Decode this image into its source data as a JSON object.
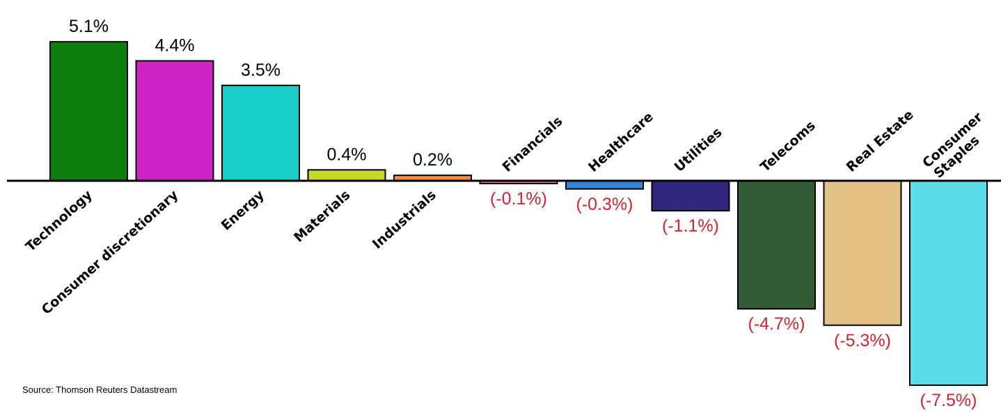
{
  "chart_data": {
    "type": "bar",
    "categories": [
      "Technology",
      "Consumer discretionary",
      "Energy",
      "Materials",
      "Industrials",
      "Financials",
      "Healthcare",
      "Utilities",
      "Telecoms",
      "Real Estate",
      "Consumer Staples"
    ],
    "values": [
      5.1,
      4.4,
      3.5,
      0.4,
      0.2,
      -0.1,
      -0.3,
      -1.1,
      -4.7,
      -5.3,
      -7.5
    ],
    "value_labels": [
      "5.1%",
      "4.4%",
      "3.5%",
      "0.4%",
      "0.2%",
      "(-0.1%)",
      "(-0.3%)",
      "(-1.1%)",
      "(-4.7%)",
      "(-5.3%)",
      "(-7.5%)"
    ],
    "bar_colors": [
      "#0e7d10",
      "#cc24c2",
      "#1bcfc8",
      "#c9d92a",
      "#f58c45",
      "#f06c9f",
      "#3585d6",
      "#31267e",
      "#335a36",
      "#e3c287",
      "#5cdfe8"
    ],
    "positive_label_color": "#000000",
    "negative_label_color": "#d0242f",
    "title": "",
    "xlabel": "",
    "ylabel": "",
    "ylim": [
      -7.5,
      5.1
    ],
    "grid": false
  },
  "source": "Source: Thomson Reuters Datastream"
}
